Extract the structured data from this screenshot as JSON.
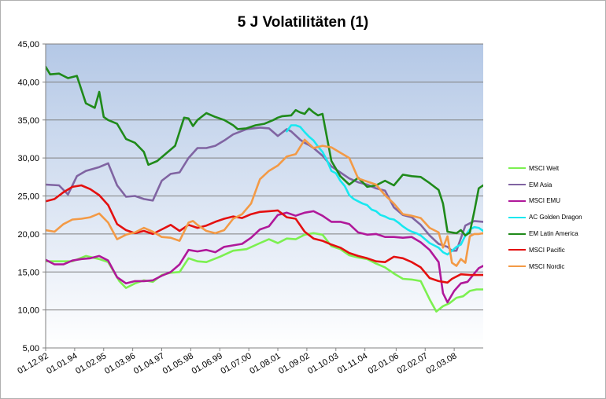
{
  "chart_data": {
    "type": "line",
    "title": "5 J Volatilitäten (1)",
    "xlabel": "",
    "ylabel": "",
    "ylim": [
      5,
      45
    ],
    "y_ticks": [
      "5,00",
      "10,00",
      "15,00",
      "20,00",
      "25,00",
      "30,00",
      "35,00",
      "40,00",
      "45,00"
    ],
    "x_tick_labels": [
      "01.12.92",
      "01.01.94",
      "01.02.95",
      "01.03.96",
      "01.04.97",
      "01.05.98",
      "01.06.99",
      "01.07.00",
      "01.08.01",
      "01.09.02",
      "01.10.03",
      "01.11.04",
      "02.01.06",
      "02.02.07",
      "02.03.08"
    ],
    "x_tick_positions": [
      0,
      13,
      26,
      39,
      52,
      65,
      78,
      91,
      104,
      117,
      130,
      143,
      157,
      170,
      183
    ],
    "x_range": [
      0,
      196
    ],
    "grid": "horizontal",
    "legend_position": "right",
    "plot_background": [
      "#b4c8e6",
      "#ffffff"
    ],
    "series": [
      {
        "name": "MSCI Welt",
        "color": "#7cf050",
        "x": [
          0,
          8,
          12,
          18,
          24,
          28,
          33,
          36,
          40,
          44,
          48,
          52,
          56,
          60,
          64,
          68,
          72,
          78,
          84,
          90,
          96,
          100,
          104,
          108,
          112,
          116,
          120,
          124,
          128,
          132,
          136,
          140,
          144,
          148,
          152,
          156,
          160,
          164,
          168,
          172,
          175,
          178,
          181,
          184,
          187,
          190,
          193,
          196
        ],
        "values": [
          16.4,
          16.4,
          16.4,
          17.1,
          16.7,
          16.3,
          13.8,
          12.9,
          13.5,
          13.9,
          13.7,
          14.6,
          14.9,
          15.0,
          16.8,
          16.4,
          16.3,
          17.0,
          17.8,
          18.0,
          18.8,
          19.3,
          18.8,
          19.4,
          19.3,
          19.9,
          20.1,
          19.9,
          18.4,
          18.0,
          17.2,
          16.9,
          16.7,
          16.1,
          15.6,
          14.8,
          14.1,
          14.0,
          13.8,
          11.4,
          9.8,
          10.5,
          10.9,
          11.6,
          11.8,
          12.5,
          12.7,
          12.7
        ]
      },
      {
        "name": "EM Asia",
        "color": "#8064a2",
        "x": [
          0,
          6,
          10,
          14,
          18,
          24,
          28,
          32,
          36,
          40,
          44,
          48,
          52,
          56,
          60,
          64,
          68,
          72,
          76,
          80,
          84,
          90,
          96,
          100,
          104,
          108,
          110,
          114,
          116,
          118,
          120,
          124,
          128,
          132,
          136,
          140,
          144,
          148,
          152,
          156,
          160,
          164,
          168,
          172,
          176,
          180,
          182,
          184,
          188,
          192,
          196
        ],
        "values": [
          26.5,
          26.4,
          25.2,
          27.6,
          28.3,
          28.8,
          29.3,
          26.4,
          24.9,
          25.0,
          24.6,
          24.4,
          27.0,
          27.9,
          28.1,
          30.0,
          31.3,
          31.3,
          31.6,
          32.3,
          33.1,
          33.8,
          34.0,
          33.9,
          32.9,
          33.8,
          33.5,
          32.4,
          32.0,
          31.7,
          31.3,
          30.3,
          28.9,
          28.1,
          27.3,
          26.8,
          26.5,
          26.0,
          25.7,
          23.5,
          22.5,
          22.2,
          21.2,
          19.8,
          18.7,
          18.3,
          17.8,
          17.8,
          21.1,
          21.7,
          21.6
        ]
      },
      {
        "name": "MSCI EMU",
        "color": "#b0189a",
        "x": [
          0,
          4,
          8,
          12,
          16,
          20,
          24,
          28,
          32,
          36,
          40,
          44,
          48,
          52,
          56,
          60,
          64,
          68,
          72,
          76,
          80,
          84,
          88,
          92,
          96,
          100,
          104,
          108,
          112,
          116,
          120,
          124,
          128,
          132,
          136,
          140,
          144,
          148,
          152,
          156,
          160,
          164,
          168,
          172,
          176,
          178,
          180,
          183,
          186,
          189,
          192,
          194,
          196
        ],
        "values": [
          16.6,
          16.0,
          16.0,
          16.5,
          16.7,
          16.8,
          17.1,
          16.5,
          14.3,
          13.5,
          13.8,
          13.8,
          13.9,
          14.5,
          15.0,
          16.0,
          17.9,
          17.7,
          17.9,
          17.6,
          18.3,
          18.5,
          18.7,
          19.5,
          20.6,
          21.0,
          22.5,
          22.8,
          22.4,
          22.8,
          23.0,
          22.4,
          21.6,
          21.6,
          21.3,
          20.2,
          19.9,
          20.0,
          19.6,
          19.6,
          19.5,
          19.6,
          18.9,
          17.9,
          16.3,
          12.2,
          11.0,
          12.5,
          13.5,
          13.7,
          14.8,
          15.5,
          15.8
        ]
      },
      {
        "name": "AC Golden Dragon",
        "color": "#18e8f0",
        "x": [
          108,
          110,
          112,
          114,
          116,
          118,
          120,
          122,
          124,
          126,
          128,
          130,
          132,
          134,
          136,
          138,
          140,
          142,
          144,
          146,
          148,
          150,
          152,
          154,
          156,
          158,
          160,
          162,
          164,
          166,
          168,
          170,
          172,
          174,
          176,
          178,
          180,
          182,
          184,
          186,
          188,
          190,
          192,
          194,
          196
        ],
        "values": [
          33.5,
          34.3,
          34.3,
          34.1,
          33.4,
          32.8,
          32.3,
          31.5,
          30.8,
          29.7,
          28.3,
          28.0,
          27.0,
          26.3,
          25.1,
          24.6,
          24.3,
          24.0,
          23.8,
          23.2,
          23.0,
          22.5,
          22.3,
          22.0,
          21.9,
          21.5,
          21.0,
          20.6,
          20.3,
          20.1,
          19.8,
          19.3,
          18.8,
          18.5,
          18.2,
          17.6,
          17.3,
          17.8,
          18.3,
          18.6,
          19.8,
          20.6,
          20.9,
          20.8,
          20.4
        ]
      },
      {
        "name": "EM Latin America",
        "color": "#1f8a1a",
        "x": [
          0,
          2,
          6,
          10,
          14,
          18,
          22,
          24,
          26,
          28,
          32,
          36,
          40,
          44,
          46,
          50,
          54,
          58,
          62,
          64,
          66,
          68,
          72,
          76,
          80,
          84,
          86,
          90,
          94,
          98,
          102,
          104,
          106,
          110,
          112,
          114,
          116,
          118,
          120,
          122,
          124,
          128,
          132,
          136,
          140,
          144,
          148,
          152,
          156,
          160,
          164,
          168,
          172,
          176,
          178,
          180,
          184,
          186,
          188,
          190,
          192,
          194,
          196
        ],
        "values": [
          42.0,
          41.0,
          41.1,
          40.5,
          40.8,
          37.2,
          36.6,
          38.7,
          35.4,
          35.0,
          34.5,
          32.5,
          32.0,
          30.8,
          29.1,
          29.6,
          30.6,
          31.6,
          35.3,
          35.2,
          34.2,
          35.0,
          35.9,
          35.4,
          35.0,
          34.3,
          33.8,
          33.9,
          34.3,
          34.5,
          35.0,
          35.3,
          35.5,
          35.6,
          36.3,
          36.0,
          35.8,
          36.5,
          36.0,
          35.6,
          35.8,
          29.6,
          27.6,
          26.5,
          27.4,
          26.2,
          26.4,
          27.0,
          26.4,
          27.8,
          27.6,
          27.5,
          26.7,
          25.8,
          24.0,
          20.3,
          20.1,
          20.5,
          19.8,
          20.2,
          23.0,
          26.0,
          26.4
        ]
      },
      {
        "name": "MSCI Pacific",
        "color": "#e41010",
        "x": [
          0,
          4,
          8,
          12,
          16,
          20,
          24,
          28,
          32,
          36,
          40,
          44,
          48,
          52,
          56,
          60,
          64,
          68,
          72,
          76,
          80,
          84,
          88,
          92,
          96,
          100,
          104,
          108,
          112,
          116,
          120,
          124,
          128,
          132,
          136,
          140,
          144,
          148,
          152,
          156,
          160,
          164,
          168,
          172,
          176,
          180,
          182,
          186,
          190,
          194,
          196
        ],
        "values": [
          24.3,
          24.6,
          25.5,
          26.2,
          26.4,
          25.9,
          25.1,
          23.8,
          21.3,
          20.5,
          20.1,
          20.4,
          20.0,
          20.6,
          21.2,
          20.4,
          21.2,
          20.8,
          21.1,
          21.6,
          22.0,
          22.3,
          22.1,
          22.6,
          22.9,
          23.0,
          23.1,
          22.2,
          22.0,
          20.3,
          19.4,
          19.1,
          18.6,
          18.2,
          17.5,
          17.1,
          16.8,
          16.4,
          16.3,
          17.0,
          16.8,
          16.3,
          15.6,
          14.2,
          13.8,
          13.6,
          14.1,
          14.7,
          14.6,
          14.6,
          14.6
        ]
      },
      {
        "name": "MSCI Nordic",
        "color": "#f39a46",
        "x": [
          0,
          4,
          8,
          12,
          16,
          20,
          24,
          28,
          32,
          36,
          40,
          44,
          48,
          52,
          56,
          60,
          64,
          66,
          68,
          72,
          76,
          80,
          84,
          88,
          92,
          96,
          100,
          104,
          108,
          112,
          116,
          120,
          124,
          128,
          132,
          136,
          140,
          144,
          148,
          152,
          156,
          160,
          164,
          168,
          172,
          176,
          178,
          180,
          182,
          184,
          186,
          188,
          190,
          192,
          194,
          196
        ],
        "values": [
          20.5,
          20.3,
          21.3,
          21.9,
          22.0,
          22.2,
          22.7,
          21.5,
          19.3,
          19.9,
          20.2,
          20.8,
          20.3,
          19.6,
          19.5,
          19.1,
          21.5,
          21.7,
          21.2,
          20.4,
          20.1,
          20.5,
          22.0,
          22.6,
          24.0,
          27.2,
          28.3,
          29.0,
          30.2,
          30.5,
          32.4,
          31.3,
          31.6,
          31.4,
          30.7,
          30.0,
          27.3,
          26.9,
          26.5,
          25.1,
          24.0,
          22.6,
          22.4,
          22.1,
          20.8,
          20.2,
          18.2,
          19.7,
          16.2,
          15.8,
          16.7,
          16.2,
          19.7,
          20.0,
          20.0,
          20.1
        ]
      }
    ]
  }
}
